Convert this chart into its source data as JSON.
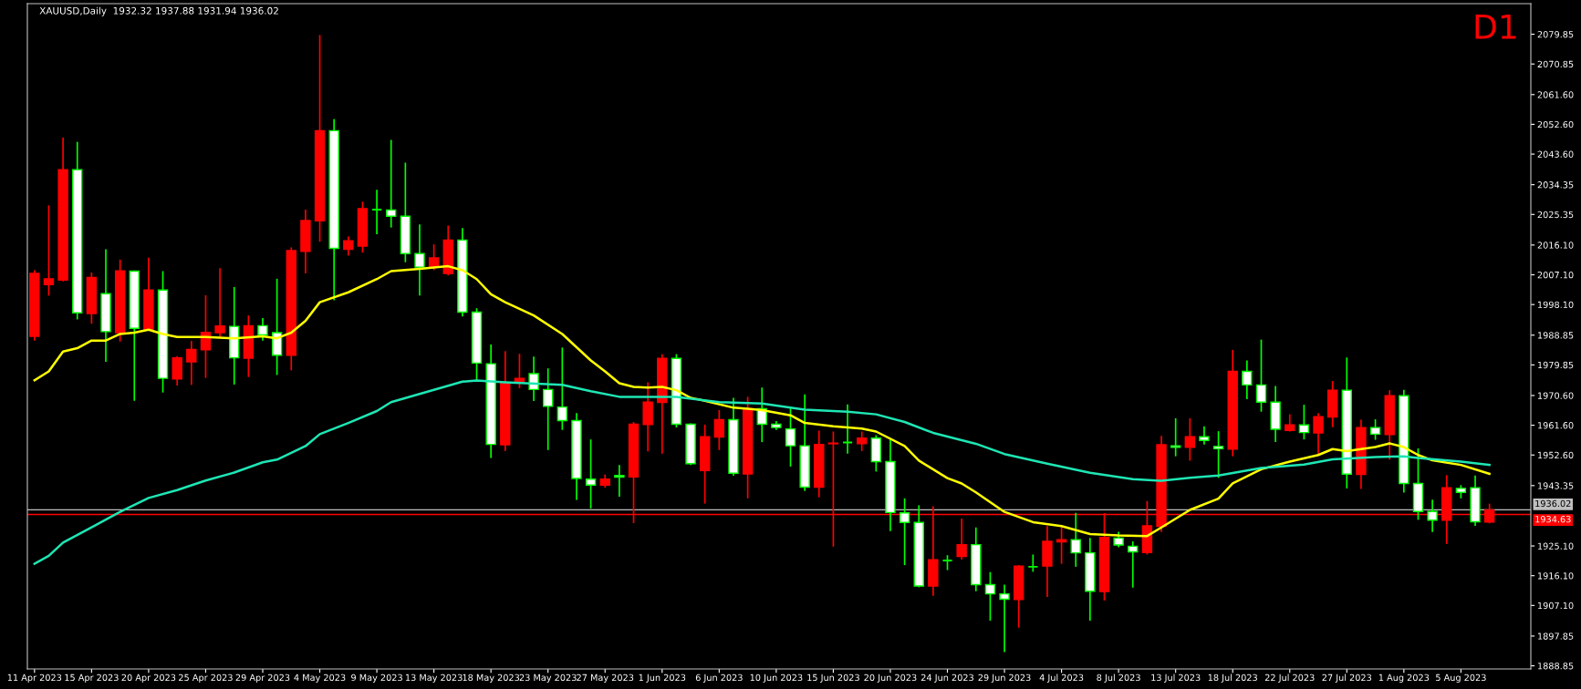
{
  "chart_data": {
    "type": "candlestick",
    "title": "XAUUSD,Daily  1932.32 1937.88 1931.94 1936.02",
    "annotations": [
      "D1"
    ],
    "categories": [
      "11 Apr 2023",
      null,
      null,
      null,
      "15 Apr 2023",
      null,
      null,
      null,
      "20 Apr 2023",
      null,
      null,
      null,
      "25 Apr 2023",
      null,
      null,
      null,
      "29 Apr 2023",
      null,
      null,
      null,
      "4 May 2023",
      null,
      null,
      null,
      "9 May 2023",
      null,
      null,
      null,
      "13 May 2023",
      null,
      null,
      null,
      "18 May 2023",
      null,
      null,
      null,
      "23 May 2023",
      null,
      null,
      null,
      "27 May 2023",
      null,
      null,
      null,
      "1 Jun 2023",
      null,
      null,
      null,
      "6 Jun 2023",
      null,
      null,
      null,
      "10 Jun 2023",
      null,
      null,
      null,
      "15 Jun 2023",
      null,
      null,
      null,
      "20 Jun 2023",
      null,
      null,
      null,
      "24 Jun 2023",
      null,
      null,
      null,
      "29 Jun 2023",
      null,
      null,
      null,
      "4 Jul 2023",
      null,
      null,
      null,
      "8 Jul 2023",
      null,
      null,
      null,
      "13 Jul 2023",
      null,
      null,
      null,
      "18 Jul 2023",
      null,
      null,
      null,
      "22 Jul 2023",
      null,
      null,
      null,
      "27 Jul 2023",
      null,
      null,
      null,
      "1 Aug 2023",
      null,
      null,
      null,
      "5 Aug 2023",
      null,
      null
    ],
    "ohlc": [
      [
        1988.5,
        2008.5,
        1987.2,
        2007.5
      ],
      [
        2004.1,
        2028.1,
        2000.8,
        2005.9
      ],
      [
        2005.5,
        2048.6,
        2005.1,
        2038.9
      ],
      [
        2038.9,
        2047.3,
        1993.6,
        1995.6
      ],
      [
        1995.4,
        2007.8,
        1992.3,
        2006.3
      ],
      [
        2001.4,
        2014.8,
        1980.8,
        1989.9
      ],
      [
        1989.6,
        2011.7,
        1986.9,
        2008.3
      ],
      [
        2008.2,
        2008.4,
        1969.0,
        1990.9
      ],
      [
        1990.5,
        2012.3,
        1990.3,
        2002.5
      ],
      [
        2002.5,
        2008.2,
        1971.5,
        1975.8
      ],
      [
        1975.6,
        1982.5,
        1973.6,
        1982.0
      ],
      [
        1980.8,
        1987.1,
        1973.8,
        1984.5
      ],
      [
        1984.4,
        2000.9,
        1975.9,
        1989.7
      ],
      [
        1989.6,
        2009.1,
        1987.9,
        1991.6
      ],
      [
        1991.5,
        2003.4,
        1973.9,
        1982.0
      ],
      [
        1981.9,
        1994.8,
        1976.2,
        1991.7
      ],
      [
        1991.7,
        1994.0,
        1987.2,
        1988.9
      ],
      [
        1989.6,
        2005.9,
        1976.8,
        1982.8
      ],
      [
        1982.8,
        2015.4,
        1978.2,
        2014.4
      ],
      [
        2014.2,
        2026.8,
        2007.5,
        2023.5
      ],
      [
        2023.4,
        2079.6,
        2017.1,
        2050.7
      ],
      [
        2050.7,
        2054.2,
        1999.4,
        2015.1
      ],
      [
        2014.8,
        2018.7,
        2012.9,
        2017.4
      ],
      [
        2015.8,
        2029.2,
        2013.8,
        2027.1
      ],
      [
        2026.8,
        2032.8,
        2019.4,
        2026.8
      ],
      [
        2026.7,
        2047.9,
        2021.4,
        2024.8
      ],
      [
        2024.8,
        2041.0,
        2010.9,
        2013.5
      ],
      [
        2013.5,
        2022.3,
        2000.8,
        2009.4
      ],
      [
        2009.5,
        2016.3,
        2008.5,
        2012.2
      ],
      [
        2007.5,
        2022.0,
        2006.9,
        2017.6
      ],
      [
        2017.6,
        2021.2,
        1994.5,
        1995.8
      ],
      [
        1995.8,
        1997.0,
        1975.1,
        1980.4
      ],
      [
        1980.2,
        1986.0,
        1951.7,
        1955.8
      ],
      [
        1955.7,
        1984.0,
        1953.8,
        1974.3
      ],
      [
        1974.7,
        1983.2,
        1972.8,
        1975.8
      ],
      [
        1977.2,
        1982.4,
        1968.9,
        1972.4
      ],
      [
        1972.4,
        1978.8,
        1954.1,
        1967.3
      ],
      [
        1967.1,
        1985.1,
        1960.2,
        1963.0
      ],
      [
        1963.0,
        1965.3,
        1939.0,
        1945.5
      ],
      [
        1945.3,
        1957.3,
        1936.4,
        1943.5
      ],
      [
        1943.5,
        1946.7,
        1942.7,
        1945.3
      ],
      [
        1946.4,
        1949.6,
        1940.0,
        1945.9
      ],
      [
        1946.0,
        1962.6,
        1932.0,
        1961.9
      ],
      [
        1961.8,
        1974.6,
        1953.7,
        1968.6
      ],
      [
        1968.5,
        1983.1,
        1953.0,
        1981.8
      ],
      [
        1981.8,
        1983.1,
        1960.9,
        1961.9
      ],
      [
        1961.9,
        1962.2,
        1949.6,
        1950.0
      ],
      [
        1947.9,
        1961.8,
        1937.9,
        1958.1
      ],
      [
        1958.0,
        1966.2,
        1954.1,
        1963.3
      ],
      [
        1963.3,
        1969.9,
        1946.3,
        1947.1
      ],
      [
        1946.9,
        1970.2,
        1939.5,
        1966.6
      ],
      [
        1966.6,
        1973.0,
        1956.5,
        1961.9
      ],
      [
        1961.9,
        1962.9,
        1960.2,
        1960.9
      ],
      [
        1960.5,
        1967.0,
        1949.1,
        1955.4
      ],
      [
        1955.4,
        1970.9,
        1941.7,
        1942.9
      ],
      [
        1942.9,
        1960.0,
        1939.8,
        1955.8
      ],
      [
        1956.0,
        1959.7,
        1924.9,
        1956.2
      ],
      [
        1956.4,
        1967.9,
        1953.0,
        1956.4
      ],
      [
        1956.0,
        1959.7,
        1953.8,
        1957.7
      ],
      [
        1957.7,
        1958.6,
        1947.6,
        1950.6
      ],
      [
        1950.6,
        1957.3,
        1929.6,
        1935.2
      ],
      [
        1935.1,
        1939.5,
        1919.3,
        1932.2
      ],
      [
        1932.2,
        1937.4,
        1912.6,
        1913.0
      ],
      [
        1913.0,
        1937.1,
        1910.0,
        1920.9
      ],
      [
        1920.7,
        1922.3,
        1917.8,
        1920.7
      ],
      [
        1921.9,
        1933.4,
        1921.0,
        1925.5
      ],
      [
        1925.5,
        1930.7,
        1911.4,
        1913.4
      ],
      [
        1913.4,
        1917.2,
        1902.5,
        1910.6
      ],
      [
        1910.6,
        1913.4,
        1893.0,
        1909.0
      ],
      [
        1908.9,
        1919.3,
        1900.4,
        1919.0
      ],
      [
        1918.8,
        1922.5,
        1917.3,
        1918.8
      ],
      [
        1919.0,
        1931.1,
        1909.7,
        1926.5
      ],
      [
        1926.3,
        1931.1,
        1919.7,
        1927.0
      ],
      [
        1927.0,
        1935.1,
        1918.8,
        1923.0
      ],
      [
        1923.0,
        1927.5,
        1902.5,
        1911.4
      ],
      [
        1911.3,
        1935.0,
        1908.6,
        1927.7
      ],
      [
        1927.5,
        1929.4,
        1924.7,
        1925.4
      ],
      [
        1925.0,
        1926.5,
        1912.5,
        1923.3
      ],
      [
        1923.1,
        1938.7,
        1922.5,
        1931.2
      ],
      [
        1931.0,
        1958.4,
        1929.3,
        1955.7
      ],
      [
        1955.4,
        1963.7,
        1952.2,
        1954.9
      ],
      [
        1954.9,
        1963.7,
        1950.9,
        1958.1
      ],
      [
        1958.1,
        1961.3,
        1955.8,
        1957.0
      ],
      [
        1955.2,
        1959.8,
        1945.7,
        1954.5
      ],
      [
        1954.4,
        1984.4,
        1952.2,
        1977.9
      ],
      [
        1977.9,
        1981.2,
        1969.5,
        1973.8
      ],
      [
        1973.8,
        1987.5,
        1965.7,
        1968.6
      ],
      [
        1968.6,
        1973.5,
        1956.5,
        1960.4
      ],
      [
        1960.0,
        1964.9,
        1959.7,
        1961.7
      ],
      [
        1961.7,
        1967.8,
        1957.3,
        1959.4
      ],
      [
        1959.3,
        1965.3,
        1952.6,
        1964.2
      ],
      [
        1964.1,
        1975.0,
        1961.0,
        1972.2
      ],
      [
        1972.2,
        1982.1,
        1942.5,
        1946.8
      ],
      [
        1946.7,
        1963.3,
        1942.3,
        1960.9
      ],
      [
        1960.9,
        1963.4,
        1957.2,
        1958.9
      ],
      [
        1958.8,
        1972.2,
        1951.2,
        1970.5
      ],
      [
        1970.5,
        1972.3,
        1941.2,
        1944.0
      ],
      [
        1944.0,
        1954.6,
        1933.0,
        1935.5
      ],
      [
        1935.5,
        1939.1,
        1929.3,
        1932.9
      ],
      [
        1932.9,
        1946.5,
        1925.7,
        1942.7
      ],
      [
        1942.5,
        1943.5,
        1939.5,
        1941.3
      ],
      [
        1942.7,
        1946.4,
        1931.2,
        1932.4
      ],
      [
        1932.32,
        1937.88,
        1931.94,
        1936.02
      ]
    ],
    "colors": [
      "#ff0000",
      "#ff0000",
      "#ff0000",
      "#ffffff",
      "#ff0000",
      "#ffffff",
      "#ff0000",
      "#ffffff",
      "#ff0000",
      "#ffffff",
      "#ff0000",
      "#ff0000",
      "#ff0000",
      "#ff0000",
      "#ffffff",
      "#ff0000",
      "#ffffff",
      "#ffffff",
      "#ff0000",
      "#ff0000",
      "#ff0000",
      "#ffffff",
      "#ff0000",
      "#ff0000",
      "#00ff00",
      "#ffffff",
      "#ffffff",
      "#ffffff",
      "#ff0000",
      "#ff0000",
      "#ffffff",
      "#ffffff",
      "#ffffff",
      "#ff0000",
      "#ff0000",
      "#ffffff",
      "#ffffff",
      "#ffffff",
      "#ffffff",
      "#ffffff",
      "#ff0000",
      "#ffffff",
      "#ff0000",
      "#ff0000",
      "#ff0000",
      "#ffffff",
      "#ffffff",
      "#ff0000",
      "#ff0000",
      "#ffffff",
      "#ff0000",
      "#ffffff",
      "#ffffff",
      "#ffffff",
      "#ffffff",
      "#ff0000",
      "#ff0000",
      "#00ff00",
      "#ff0000",
      "#ffffff",
      "#ffffff",
      "#ffffff",
      "#ffffff",
      "#ff0000",
      "#00ff00",
      "#ff0000",
      "#ffffff",
      "#ffffff",
      "#ffffff",
      "#ff0000",
      "#00ff00",
      "#ff0000",
      "#ff0000",
      "#ffffff",
      "#ffffff",
      "#ff0000",
      "#ffffff",
      "#ffffff",
      "#ff0000",
      "#ff0000",
      "#ffffff",
      "#ff0000",
      "#ffffff",
      "#ffffff",
      "#ff0000",
      "#ffffff",
      "#ffffff",
      "#ffffff",
      "#ff0000",
      "#ffffff",
      "#ff0000",
      "#ff0000",
      "#ffffff",
      "#ff0000",
      "#ffffff",
      "#ff0000",
      "#ffffff",
      "#ffffff",
      "#ffffff",
      "#ff0000",
      "#ffffff",
      "#ffffff",
      "#ff0000"
    ],
    "series": [
      {
        "type": "line",
        "color": "#ffff00",
        "values": [
          1975.2,
          1977.9,
          1983.9,
          1984.9,
          1987.2,
          1987.2,
          1989.2,
          1989.6,
          1990.5,
          1989.2,
          1988.3,
          null,
          1988.3,
          null,
          1987.9,
          null,
          1988.5,
          1987.9,
          1989.6,
          1993.2,
          1998.8,
          null,
          2001.8,
          null,
          2005.8,
          2008.2,
          null,
          2008.9,
          null,
          2009.7,
          2008.5,
          2005.8,
          2001.2,
          1998.8,
          null,
          1994.8,
          null,
          1989.2,
          1985.2,
          1981.2,
          1977.9,
          1974.3,
          1973.2,
          1973.0,
          1973.2,
          1972.2,
          1969.9,
          1969.0,
          null,
          1966.9,
          1966.6,
          1966.2,
          null,
          1964.6,
          1962.3,
          null,
          1961.3,
          null,
          1960.6,
          1959.7,
          null,
          1955.3,
          1950.9,
          null,
          1945.6,
          1944.0,
          1941.3,
          null,
          1935.4,
          null,
          1932.3,
          null,
          1931.1,
          null,
          1928.7,
          null,
          1928.3,
          null,
          1928.1,
          1930.7,
          null,
          1936.0,
          null,
          1939.4,
          1944.0,
          null,
          1948.3,
          null,
          1950.6,
          null,
          1952.6,
          1954.4,
          1953.8,
          null,
          1955.0,
          1956.1,
          1955.0,
          1952.6,
          1951.0,
          null,
          1949.6,
          null,
          1946.9
        ]
      },
      {
        "type": "line",
        "color": "#1ee6b4",
        "values": [
          1919.7,
          1922.1,
          1926.1,
          null,
          1930.7,
          null,
          1935.4,
          null,
          1939.6,
          null,
          1942.0,
          null,
          1944.9,
          null,
          1947.3,
          null,
          1950.4,
          1951.2,
          null,
          1955.3,
          1958.9,
          null,
          1962.3,
          null,
          1965.9,
          1968.6,
          null,
          null,
          1972.3,
          null,
          1974.8,
          1975.1,
          null,
          1974.6,
          null,
          null,
          null,
          1973.8,
          null,
          1971.9,
          null,
          1970.2,
          null,
          null,
          null,
          1970.2,
          null,
          null,
          1968.6,
          null,
          null,
          1968.2,
          null,
          null,
          1966.3,
          null,
          null,
          1965.7,
          null,
          1964.9,
          null,
          1962.6,
          null,
          1959.3,
          null,
          null,
          1956.0,
          null,
          1952.9,
          null,
          null,
          1950.0,
          null,
          null,
          1947.2,
          null,
          null,
          1945.3,
          null,
          1944.8,
          null,
          1945.7,
          null,
          1946.4,
          null,
          null,
          1948.7,
          null,
          null,
          1949.7,
          null,
          1951.3,
          null,
          null,
          1952.0,
          null,
          1952.2,
          1951.7,
          null,
          null,
          1950.6,
          null,
          1949.6
        ]
      }
    ],
    "ref_lines": [
      {
        "axis": "y",
        "value": 1936.02,
        "label": "1936.02",
        "color": "#c0c0c0"
      },
      {
        "axis": "y",
        "value": 1934.63,
        "label": "1934.63",
        "color": "#ff0000"
      }
    ],
    "ylim": [
      1887.9,
      2089.1
    ],
    "yticks": [
      {
        "value": 2079.85,
        "label": "2079.85"
      },
      {
        "value": 2070.85,
        "label": "2070.85"
      },
      {
        "value": 2061.6,
        "label": "2061.60"
      },
      {
        "value": 2052.6,
        "label": "2052.60"
      },
      {
        "value": 2043.6,
        "label": "2043.60"
      },
      {
        "value": 2034.35,
        "label": "2034.35"
      },
      {
        "value": 2025.35,
        "label": "2025.35"
      },
      {
        "value": 2016.1,
        "label": "2016.10"
      },
      {
        "value": 2007.1,
        "label": "2007.10"
      },
      {
        "value": 1998.1,
        "label": "1998.10"
      },
      {
        "value": 1988.85,
        "label": "1988.85"
      },
      {
        "value": 1979.85,
        "label": "1979.85"
      },
      {
        "value": 1970.6,
        "label": "1970.60"
      },
      {
        "value": 1961.6,
        "label": "1961.60"
      },
      {
        "value": 1952.6,
        "label": "1952.60"
      },
      {
        "value": 1943.35,
        "label": "1943.35"
      },
      {
        "value": 1925.1,
        "label": "1925.10"
      },
      {
        "value": 1916.1,
        "label": "1916.10"
      },
      {
        "value": 1907.1,
        "label": "1907.10"
      },
      {
        "value": 1897.85,
        "label": "1897.85"
      },
      {
        "value": 1888.85,
        "label": "1888.85"
      }
    ],
    "grid": false,
    "legend": false
  }
}
